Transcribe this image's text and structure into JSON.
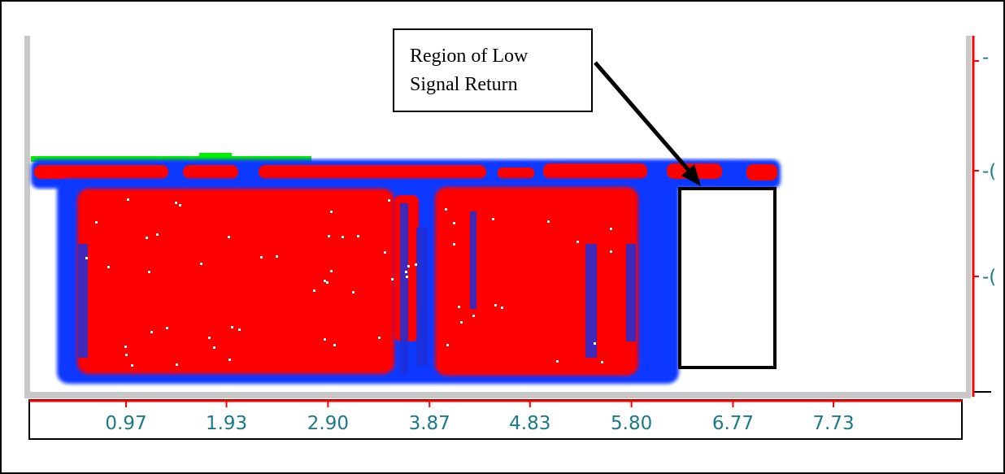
{
  "annotation": {
    "lines": [
      "Region of Low",
      "Signal Return"
    ]
  },
  "colors": {
    "signal_high": "#ff0000",
    "signal_edge": "#0a38ff",
    "noise_top": "#00ee00",
    "axis_red": "#ff0000",
    "tick_text": "#1a7a86",
    "frame_gray": "#c8c8c8"
  },
  "chart_data": {
    "type": "heatmap",
    "xlabel": "",
    "ylabel": "",
    "x_ticks": [
      "0.97",
      "1.93",
      "2.90",
      "3.87",
      "4.83",
      "5.80",
      "6.77",
      "7.73"
    ],
    "x_tick_values": [
      0.97,
      1.93,
      2.9,
      3.87,
      4.83,
      5.8,
      6.77,
      7.73
    ],
    "right_axis_labels": [
      "-",
      "-(",
      "-("
    ],
    "color_scale": [
      "white (no return)",
      "green",
      "blue",
      "red (strong return)"
    ]
  }
}
